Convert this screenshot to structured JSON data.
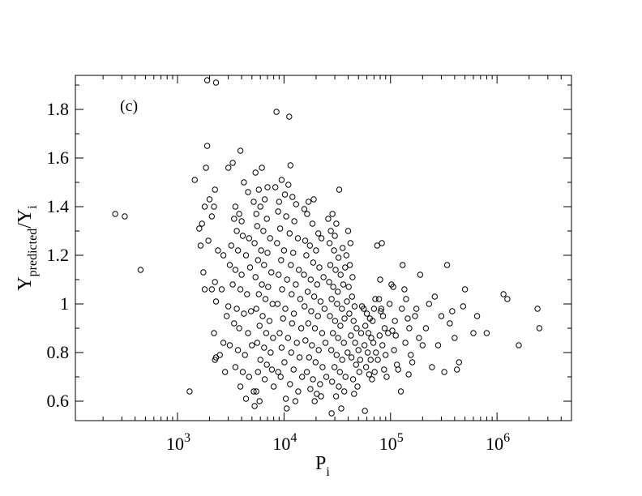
{
  "chart_data": {
    "type": "scatter",
    "panel_label": "(c)",
    "xlabel": {
      "main": "P",
      "sub": "i"
    },
    "ylabel": {
      "main": "Y",
      "sub1": "predicted",
      "sep": "/Y",
      "sub2": "i"
    },
    "x_scale": "log",
    "xlim": [
      110,
      5000000
    ],
    "ylim": [
      0.52,
      1.94
    ],
    "x_ticks": [
      {
        "value": 1000,
        "base": "10",
        "exp": "3"
      },
      {
        "value": 10000,
        "base": "10",
        "exp": "4"
      },
      {
        "value": 100000,
        "base": "10",
        "exp": "5"
      },
      {
        "value": 1000000,
        "base": "10",
        "exp": "6"
      }
    ],
    "y_ticks": [
      {
        "value": 0.6,
        "label": "0.6"
      },
      {
        "value": 0.8,
        "label": "0.8"
      },
      {
        "value": 1.0,
        "label": "1"
      },
      {
        "value": 1.2,
        "label": "1.2"
      },
      {
        "value": 1.4,
        "label": "1.4"
      },
      {
        "value": 1.6,
        "label": "1.6"
      },
      {
        "value": 1.8,
        "label": "1.8"
      }
    ],
    "grid": false,
    "marker": "open-circle",
    "points": [
      [
        260,
        1.37
      ],
      [
        320,
        1.36
      ],
      [
        450,
        1.14
      ],
      [
        1300,
        0.64
      ],
      [
        1900,
        1.92
      ],
      [
        2300,
        1.91
      ],
      [
        1900,
        1.65
      ],
      [
        1850,
        1.56
      ],
      [
        1450,
        1.51
      ],
      [
        2250,
        1.47
      ],
      [
        2000,
        1.43
      ],
      [
        2200,
        1.4
      ],
      [
        1800,
        1.4
      ],
      [
        1700,
        1.33
      ],
      [
        1600,
        1.31
      ],
      [
        2100,
        1.36
      ],
      [
        1950,
        1.26
      ],
      [
        1650,
        1.24
      ],
      [
        2400,
        1.22
      ],
      [
        2250,
        1.09
      ],
      [
        2100,
        1.06
      ],
      [
        1800,
        1.06
      ],
      [
        1750,
        1.13
      ],
      [
        2300,
        1.01
      ],
      [
        2200,
        0.88
      ],
      [
        2300,
        0.78
      ],
      [
        2250,
        0.77
      ],
      [
        2500,
        0.79
      ],
      [
        3000,
        1.56
      ],
      [
        3300,
        1.58
      ],
      [
        3900,
        1.63
      ],
      [
        4200,
        1.5
      ],
      [
        4600,
        1.46
      ],
      [
        3500,
        1.4
      ],
      [
        3800,
        1.37
      ],
      [
        4000,
        1.34
      ],
      [
        3400,
        1.35
      ],
      [
        3600,
        1.3
      ],
      [
        4100,
        1.28
      ],
      [
        4700,
        1.27
      ],
      [
        3200,
        1.24
      ],
      [
        3700,
        1.22
      ],
      [
        4400,
        1.2
      ],
      [
        3100,
        1.16
      ],
      [
        3500,
        1.14
      ],
      [
        4000,
        1.12
      ],
      [
        4800,
        1.15
      ],
      [
        3300,
        1.08
      ],
      [
        3900,
        1.06
      ],
      [
        4500,
        1.04
      ],
      [
        3000,
        0.99
      ],
      [
        3600,
        0.98
      ],
      [
        4200,
        0.96
      ],
      [
        4900,
        0.97
      ],
      [
        3400,
        0.92
      ],
      [
        3800,
        0.9
      ],
      [
        4600,
        0.88
      ],
      [
        3100,
        0.83
      ],
      [
        3700,
        0.81
      ],
      [
        4300,
        0.79
      ],
      [
        5000,
        0.83
      ],
      [
        3500,
        0.74
      ],
      [
        4100,
        0.72
      ],
      [
        4700,
        0.7
      ],
      [
        3900,
        0.66
      ],
      [
        4400,
        0.61
      ],
      [
        5200,
        0.64
      ],
      [
        2800,
        0.72
      ],
      [
        2700,
        0.84
      ],
      [
        2900,
        0.95
      ],
      [
        2600,
        1.06
      ],
      [
        2700,
        1.2
      ],
      [
        5400,
        1.54
      ],
      [
        6200,
        1.56
      ],
      [
        5800,
        1.47
      ],
      [
        6600,
        1.43
      ],
      [
        7000,
        1.48
      ],
      [
        5200,
        1.42
      ],
      [
        6000,
        1.4
      ],
      [
        5500,
        1.37
      ],
      [
        6900,
        1.35
      ],
      [
        5600,
        1.32
      ],
      [
        6400,
        1.3
      ],
      [
        7400,
        1.27
      ],
      [
        5300,
        1.25
      ],
      [
        6100,
        1.22
      ],
      [
        7000,
        1.21
      ],
      [
        5700,
        1.18
      ],
      [
        6500,
        1.16
      ],
      [
        7600,
        1.13
      ],
      [
        5400,
        1.11
      ],
      [
        6200,
        1.08
      ],
      [
        7100,
        1.07
      ],
      [
        5800,
        1.04
      ],
      [
        6700,
        1.02
      ],
      [
        7800,
        1.0
      ],
      [
        5500,
        0.98
      ],
      [
        6300,
        0.95
      ],
      [
        7300,
        0.93
      ],
      [
        5900,
        0.91
      ],
      [
        6800,
        0.88
      ],
      [
        7900,
        0.86
      ],
      [
        5600,
        0.84
      ],
      [
        6500,
        0.82
      ],
      [
        7500,
        0.8
      ],
      [
        6000,
        0.77
      ],
      [
        6900,
        0.75
      ],
      [
        5700,
        0.72
      ],
      [
        6600,
        0.69
      ],
      [
        5500,
        0.64
      ],
      [
        5900,
        0.6
      ],
      [
        5300,
        0.58
      ],
      [
        7700,
        0.73
      ],
      [
        8000,
        0.66
      ],
      [
        8500,
        1.79
      ],
      [
        11200,
        1.77
      ],
      [
        11500,
        1.57
      ],
      [
        9500,
        1.51
      ],
      [
        8300,
        1.48
      ],
      [
        11000,
        1.49
      ],
      [
        10200,
        1.45
      ],
      [
        9000,
        1.42
      ],
      [
        12000,
        1.44
      ],
      [
        13000,
        1.41
      ],
      [
        8800,
        1.38
      ],
      [
        10500,
        1.36
      ],
      [
        12500,
        1.34
      ],
      [
        9200,
        1.31
      ],
      [
        11300,
        1.29
      ],
      [
        13500,
        1.27
      ],
      [
        8600,
        1.25
      ],
      [
        10000,
        1.22
      ],
      [
        12200,
        1.21
      ],
      [
        9400,
        1.18
      ],
      [
        11600,
        1.16
      ],
      [
        13800,
        1.14
      ],
      [
        8900,
        1.12
      ],
      [
        10700,
        1.1
      ],
      [
        12900,
        1.08
      ],
      [
        9600,
        1.06
      ],
      [
        11800,
        1.04
      ],
      [
        14200,
        1.02
      ],
      [
        8700,
        1.0
      ],
      [
        10300,
        0.98
      ],
      [
        12400,
        0.96
      ],
      [
        9800,
        0.94
      ],
      [
        11900,
        0.92
      ],
      [
        14500,
        0.9
      ],
      [
        9100,
        0.88
      ],
      [
        10900,
        0.86
      ],
      [
        13200,
        0.84
      ],
      [
        9500,
        0.82
      ],
      [
        11700,
        0.8
      ],
      [
        14000,
        0.78
      ],
      [
        10100,
        0.76
      ],
      [
        12300,
        0.73
      ],
      [
        9300,
        0.7
      ],
      [
        11400,
        0.67
      ],
      [
        13600,
        0.64
      ],
      [
        10400,
        0.61
      ],
      [
        12800,
        0.6
      ],
      [
        10600,
        0.57
      ],
      [
        8800,
        0.72
      ],
      [
        14800,
        0.7
      ],
      [
        15500,
        1.39
      ],
      [
        17000,
        1.42
      ],
      [
        19000,
        1.43
      ],
      [
        16500,
        1.37
      ],
      [
        18500,
        1.33
      ],
      [
        21000,
        1.29
      ],
      [
        15800,
        1.26
      ],
      [
        17500,
        1.24
      ],
      [
        20000,
        1.22
      ],
      [
        22500,
        1.27
      ],
      [
        16200,
        1.2
      ],
      [
        18800,
        1.17
      ],
      [
        21500,
        1.15
      ],
      [
        15400,
        1.12
      ],
      [
        17800,
        1.1
      ],
      [
        20500,
        1.08
      ],
      [
        23500,
        1.11
      ],
      [
        16700,
        1.05
      ],
      [
        19200,
        1.03
      ],
      [
        22000,
        1.01
      ],
      [
        15600,
        0.99
      ],
      [
        18000,
        0.97
      ],
      [
        20800,
        0.95
      ],
      [
        24000,
        0.98
      ],
      [
        16900,
        0.92
      ],
      [
        19500,
        0.9
      ],
      [
        22800,
        0.88
      ],
      [
        15900,
        0.85
      ],
      [
        18300,
        0.83
      ],
      [
        21200,
        0.81
      ],
      [
        24500,
        0.84
      ],
      [
        17200,
        0.78
      ],
      [
        19800,
        0.76
      ],
      [
        23000,
        0.74
      ],
      [
        16400,
        0.72
      ],
      [
        18700,
        0.69
      ],
      [
        21800,
        0.67
      ],
      [
        25000,
        0.7
      ],
      [
        17700,
        0.65
      ],
      [
        20300,
        0.63
      ],
      [
        22300,
        0.62
      ],
      [
        19400,
        0.6
      ],
      [
        26000,
        1.35
      ],
      [
        28500,
        1.37
      ],
      [
        31000,
        1.33
      ],
      [
        27500,
        1.3
      ],
      [
        30000,
        1.28
      ],
      [
        33000,
        1.47
      ],
      [
        26800,
        1.25
      ],
      [
        29500,
        1.22
      ],
      [
        32500,
        1.19
      ],
      [
        35500,
        1.23
      ],
      [
        27200,
        1.16
      ],
      [
        30500,
        1.14
      ],
      [
        34000,
        1.12
      ],
      [
        37500,
        1.15
      ],
      [
        26500,
        1.09
      ],
      [
        29000,
        1.07
      ],
      [
        32000,
        1.05
      ],
      [
        36000,
        1.08
      ],
      [
        28000,
        1.02
      ],
      [
        31500,
        1.0
      ],
      [
        35000,
        0.98
      ],
      [
        39000,
        1.01
      ],
      [
        27000,
        0.95
      ],
      [
        30200,
        0.93
      ],
      [
        33800,
        0.91
      ],
      [
        37000,
        0.94
      ],
      [
        28800,
        0.88
      ],
      [
        32200,
        0.86
      ],
      [
        36500,
        0.84
      ],
      [
        27800,
        0.81
      ],
      [
        31200,
        0.79
      ],
      [
        35200,
        0.77
      ],
      [
        39500,
        0.8
      ],
      [
        29800,
        0.74
      ],
      [
        33500,
        0.72
      ],
      [
        37800,
        0.7
      ],
      [
        28300,
        0.68
      ],
      [
        32700,
        0.66
      ],
      [
        36800,
        0.64
      ],
      [
        30800,
        0.62
      ],
      [
        28000,
        0.55
      ],
      [
        34500,
        0.57
      ],
      [
        40000,
        1.3
      ],
      [
        42000,
        1.25
      ],
      [
        38500,
        1.2
      ],
      [
        41500,
        1.16
      ],
      [
        44000,
        1.11
      ],
      [
        40500,
        1.07
      ],
      [
        43500,
        1.03
      ],
      [
        46000,
        0.99
      ],
      [
        41000,
        0.96
      ],
      [
        45000,
        0.93
      ],
      [
        48000,
        0.9
      ],
      [
        42500,
        0.87
      ],
      [
        46500,
        0.84
      ],
      [
        50000,
        0.81
      ],
      [
        43000,
        0.78
      ],
      [
        47500,
        0.75
      ],
      [
        51000,
        0.72
      ],
      [
        44500,
        0.69
      ],
      [
        49000,
        0.66
      ],
      [
        45500,
        0.63
      ],
      [
        52000,
        0.77
      ],
      [
        53000,
        0.88
      ],
      [
        54000,
        0.99
      ],
      [
        56000,
        0.98
      ],
      [
        60000,
        0.96
      ],
      [
        64000,
        0.94
      ],
      [
        58000,
        0.91
      ],
      [
        62000,
        0.88
      ],
      [
        66000,
        0.86
      ],
      [
        57000,
        0.83
      ],
      [
        61000,
        0.8
      ],
      [
        65000,
        0.77
      ],
      [
        59000,
        0.74
      ],
      [
        63000,
        0.71
      ],
      [
        67000,
        0.69
      ],
      [
        57500,
        0.56
      ],
      [
        68000,
        0.93
      ],
      [
        70000,
        0.98
      ],
      [
        72000,
        1.02
      ],
      [
        69000,
        0.84
      ],
      [
        73000,
        0.8
      ],
      [
        71000,
        0.72
      ],
      [
        75000,
        1.24
      ],
      [
        83000,
        1.25
      ],
      [
        80000,
        1.1
      ],
      [
        78000,
        1.02
      ],
      [
        82000,
        0.98
      ],
      [
        85000,
        0.95
      ],
      [
        88000,
        0.9
      ],
      [
        79000,
        0.87
      ],
      [
        84000,
        0.83
      ],
      [
        90000,
        0.79
      ],
      [
        76000,
        0.77
      ],
      [
        87000,
        0.73
      ],
      [
        92000,
        0.7
      ],
      [
        81000,
        0.97
      ],
      [
        95000,
        0.88
      ],
      [
        98000,
        1.0
      ],
      [
        102000,
        1.08
      ],
      [
        106000,
        1.07
      ],
      [
        110000,
        0.93
      ],
      [
        104000,
        0.89
      ],
      [
        112000,
        0.87
      ],
      [
        108000,
        0.81
      ],
      [
        115000,
        0.75
      ],
      [
        118000,
        0.73
      ],
      [
        125000,
        0.64
      ],
      [
        130000,
        1.16
      ],
      [
        135000,
        1.06
      ],
      [
        140000,
        1.02
      ],
      [
        128000,
        0.98
      ],
      [
        145000,
        0.94
      ],
      [
        150000,
        0.9
      ],
      [
        138000,
        0.84
      ],
      [
        155000,
        0.79
      ],
      [
        160000,
        0.76
      ],
      [
        148000,
        0.71
      ],
      [
        170000,
        0.95
      ],
      [
        175000,
        0.98
      ],
      [
        185000,
        0.86
      ],
      [
        190000,
        1.12
      ],
      [
        200000,
        0.83
      ],
      [
        215000,
        0.9
      ],
      [
        230000,
        1.0
      ],
      [
        245000,
        0.74
      ],
      [
        260000,
        1.03
      ],
      [
        280000,
        0.83
      ],
      [
        300000,
        0.95
      ],
      [
        320000,
        0.72
      ],
      [
        340000,
        1.16
      ],
      [
        360000,
        0.92
      ],
      [
        380000,
        0.97
      ],
      [
        400000,
        0.86
      ],
      [
        420000,
        0.73
      ],
      [
        440000,
        0.76
      ],
      [
        480000,
        0.99
      ],
      [
        500000,
        1.06
      ],
      [
        600000,
        0.88
      ],
      [
        650000,
        0.95
      ],
      [
        800000,
        0.88
      ],
      [
        1150000,
        1.04
      ],
      [
        1250000,
        1.02
      ],
      [
        1600000,
        0.83
      ],
      [
        2400000,
        0.98
      ],
      [
        2500000,
        0.9
      ]
    ]
  }
}
